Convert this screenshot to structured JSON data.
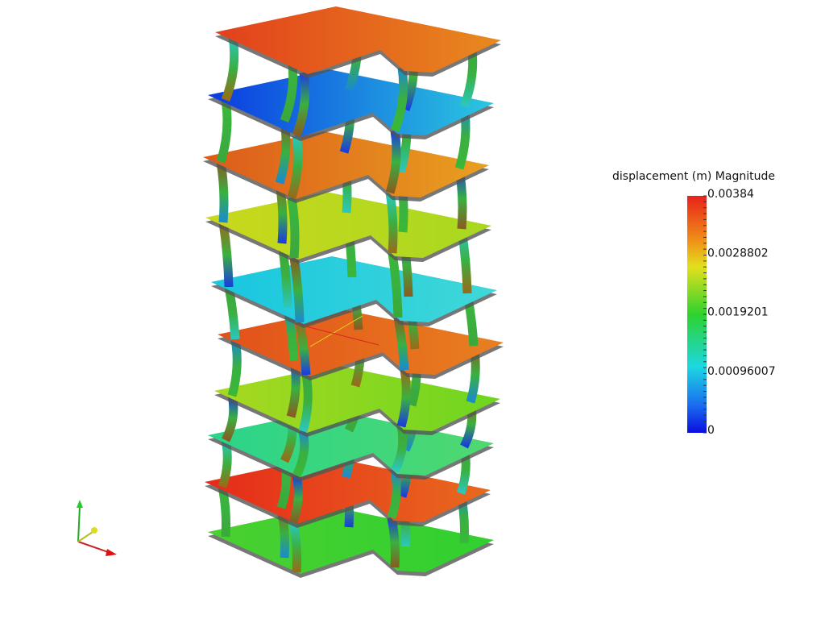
{
  "legend": {
    "title": "displacement (m) Magnitude",
    "ticks": [
      "0.00384",
      "0.0028802",
      "0.0019201",
      "0.00096007",
      "0"
    ]
  }
}
